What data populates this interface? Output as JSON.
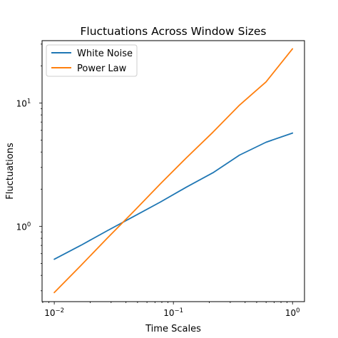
{
  "chart_data": {
    "type": "line",
    "title": "Fluctuations Across Window Sizes",
    "xlabel": "Time Scales",
    "ylabel": "Fluctuations",
    "xscale": "log",
    "yscale": "log",
    "xlim": [
      0.0079,
      1.26
    ],
    "ylim": [
      0.245,
      32
    ],
    "x_ticks": [
      {
        "value": 0.01,
        "base": "10",
        "exp": "−2"
      },
      {
        "value": 0.1,
        "base": "10",
        "exp": "−1"
      },
      {
        "value": 1,
        "base": "10",
        "exp": "0"
      }
    ],
    "y_ticks": [
      {
        "value": 1,
        "base": "10",
        "exp": "0"
      },
      {
        "value": 10,
        "base": "10",
        "exp": "1"
      }
    ],
    "grid": false,
    "legend": "top-left",
    "x": [
      0.01,
      0.0167,
      0.0278,
      0.0464,
      0.0774,
      0.129,
      0.215,
      0.359,
      0.599,
      1.0
    ],
    "series": [
      {
        "name": "White Noise",
        "color": "#1f77b4",
        "values": [
          0.54,
          0.7,
          0.92,
          1.2,
          1.57,
          2.08,
          2.72,
          3.78,
          4.8,
          5.7
        ]
      },
      {
        "name": "Power Law",
        "color": "#ff7f0e",
        "values": [
          0.29,
          0.48,
          0.8,
          1.32,
          2.2,
          3.6,
          5.8,
          9.6,
          14.8,
          27.5
        ]
      }
    ]
  }
}
